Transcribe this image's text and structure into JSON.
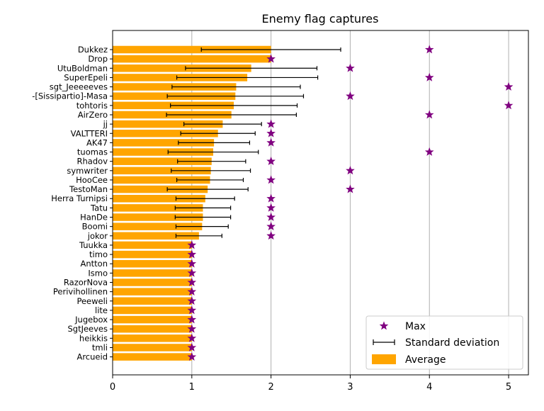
{
  "chart_data": {
    "type": "bar",
    "orientation": "horizontal",
    "title": "Enemy flag captures",
    "xlabel": "",
    "ylabel": "",
    "xlim": [
      0,
      5.25
    ],
    "xticks": [
      "0",
      "1",
      "2",
      "3",
      "4",
      "5"
    ],
    "grid": "vertical",
    "legend_position": "bottom-right",
    "colors": {
      "bar": "#ffa500",
      "max_marker": "#800080",
      "error_bar": "#000000",
      "grid": "#b0b0b0"
    },
    "categories": [
      "Dukkez",
      "Drop",
      "UtuBoldman",
      "SuperEpeli",
      "sgt_Jeeeeeves",
      "-[Sissipartio]-Masa",
      "tohtoris",
      "AirZero",
      "jj",
      "VALTTERI",
      "AK47",
      "tuomas",
      "Rhadov",
      "symwriter",
      "HooCee",
      "TestoMan",
      "Herra Turnipsi",
      "Tatu",
      "HanDe",
      "Boomi",
      "jokor",
      "Tuukka",
      "timo",
      "Antton",
      "Ismo",
      "RazorNova",
      "Perivihollinen",
      "Peeweli",
      "lite",
      "Jugebox",
      "SgtJeeves",
      "heikkis",
      "tmli",
      "Arcueid"
    ],
    "series": [
      {
        "name": "Average",
        "kind": "bar",
        "values": [
          2.0,
          2.0,
          1.75,
          1.7,
          1.56,
          1.55,
          1.53,
          1.5,
          1.39,
          1.33,
          1.28,
          1.27,
          1.25,
          1.24,
          1.23,
          1.2,
          1.17,
          1.14,
          1.14,
          1.13,
          1.09,
          1.0,
          1.0,
          1.0,
          1.0,
          1.0,
          1.0,
          1.0,
          1.0,
          1.0,
          1.0,
          1.0,
          1.0,
          1.0
        ]
      },
      {
        "name": "Standard deviation",
        "kind": "errorbar",
        "values": [
          0.88,
          0.0,
          0.83,
          0.89,
          0.81,
          0.86,
          0.8,
          0.82,
          0.49,
          0.47,
          0.45,
          0.57,
          0.43,
          0.5,
          0.42,
          0.51,
          0.37,
          0.35,
          0.35,
          0.33,
          0.29,
          0,
          0,
          0,
          0,
          0,
          0,
          0,
          0,
          0,
          0,
          0,
          0,
          0
        ]
      },
      {
        "name": "Max",
        "kind": "marker",
        "values": [
          4,
          2,
          3,
          4,
          5,
          3,
          5,
          4,
          2,
          2,
          2,
          4,
          2,
          3,
          2,
          3,
          2,
          2,
          2,
          2,
          2,
          1,
          1,
          1,
          1,
          1,
          1,
          1,
          1,
          1,
          1,
          1,
          1,
          1
        ]
      }
    ]
  }
}
